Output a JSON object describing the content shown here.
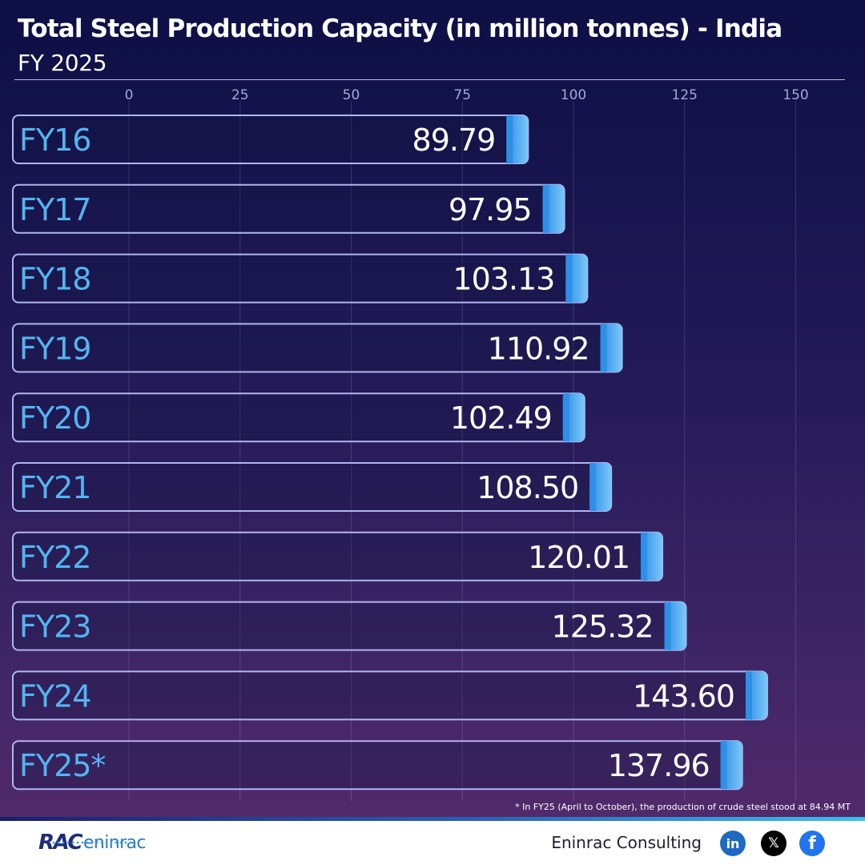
{
  "chart_data": {
    "type": "bar",
    "orientation": "horizontal",
    "title": "Total Steel Production Capacity (in million tonnes) - India",
    "subtitle": "FY 2025",
    "categories": [
      "FY16",
      "FY17",
      "FY18",
      "FY19",
      "FY20",
      "FY21",
      "FY22",
      "FY23",
      "FY24",
      "FY25*"
    ],
    "values": [
      89.79,
      97.95,
      103.13,
      110.92,
      102.49,
      108.5,
      120.01,
      125.32,
      143.6,
      137.96
    ],
    "value_labels": [
      "89.79",
      "97.95",
      "103.13",
      "110.92",
      "102.49",
      "108.50",
      "120.01",
      "125.32",
      "143.60",
      "137.96"
    ],
    "x_ticks": [
      "0",
      "25",
      "50",
      "75",
      "100",
      "125",
      "150"
    ],
    "xlim": [
      0,
      150
    ],
    "grid": true,
    "axis_position": "top",
    "colors": {
      "bar_outline": "#aeb6f0",
      "bar_fill_end": "#4fb1f2",
      "category_label": "#53b5f1",
      "value_label": "#ffffff"
    }
  },
  "footnote": "* In FY25 (April to October), the production of crude steel stood at 84.94 MT",
  "footer": {
    "logo_mark": "RAC",
    "logo_word": "eninrac",
    "company_name": "Eninrac Consulting",
    "social": [
      {
        "icon": "linkedin-icon",
        "glyph": "in"
      },
      {
        "icon": "x-icon",
        "glyph": "𝕏"
      },
      {
        "icon": "facebook-icon",
        "glyph": "f"
      }
    ]
  }
}
